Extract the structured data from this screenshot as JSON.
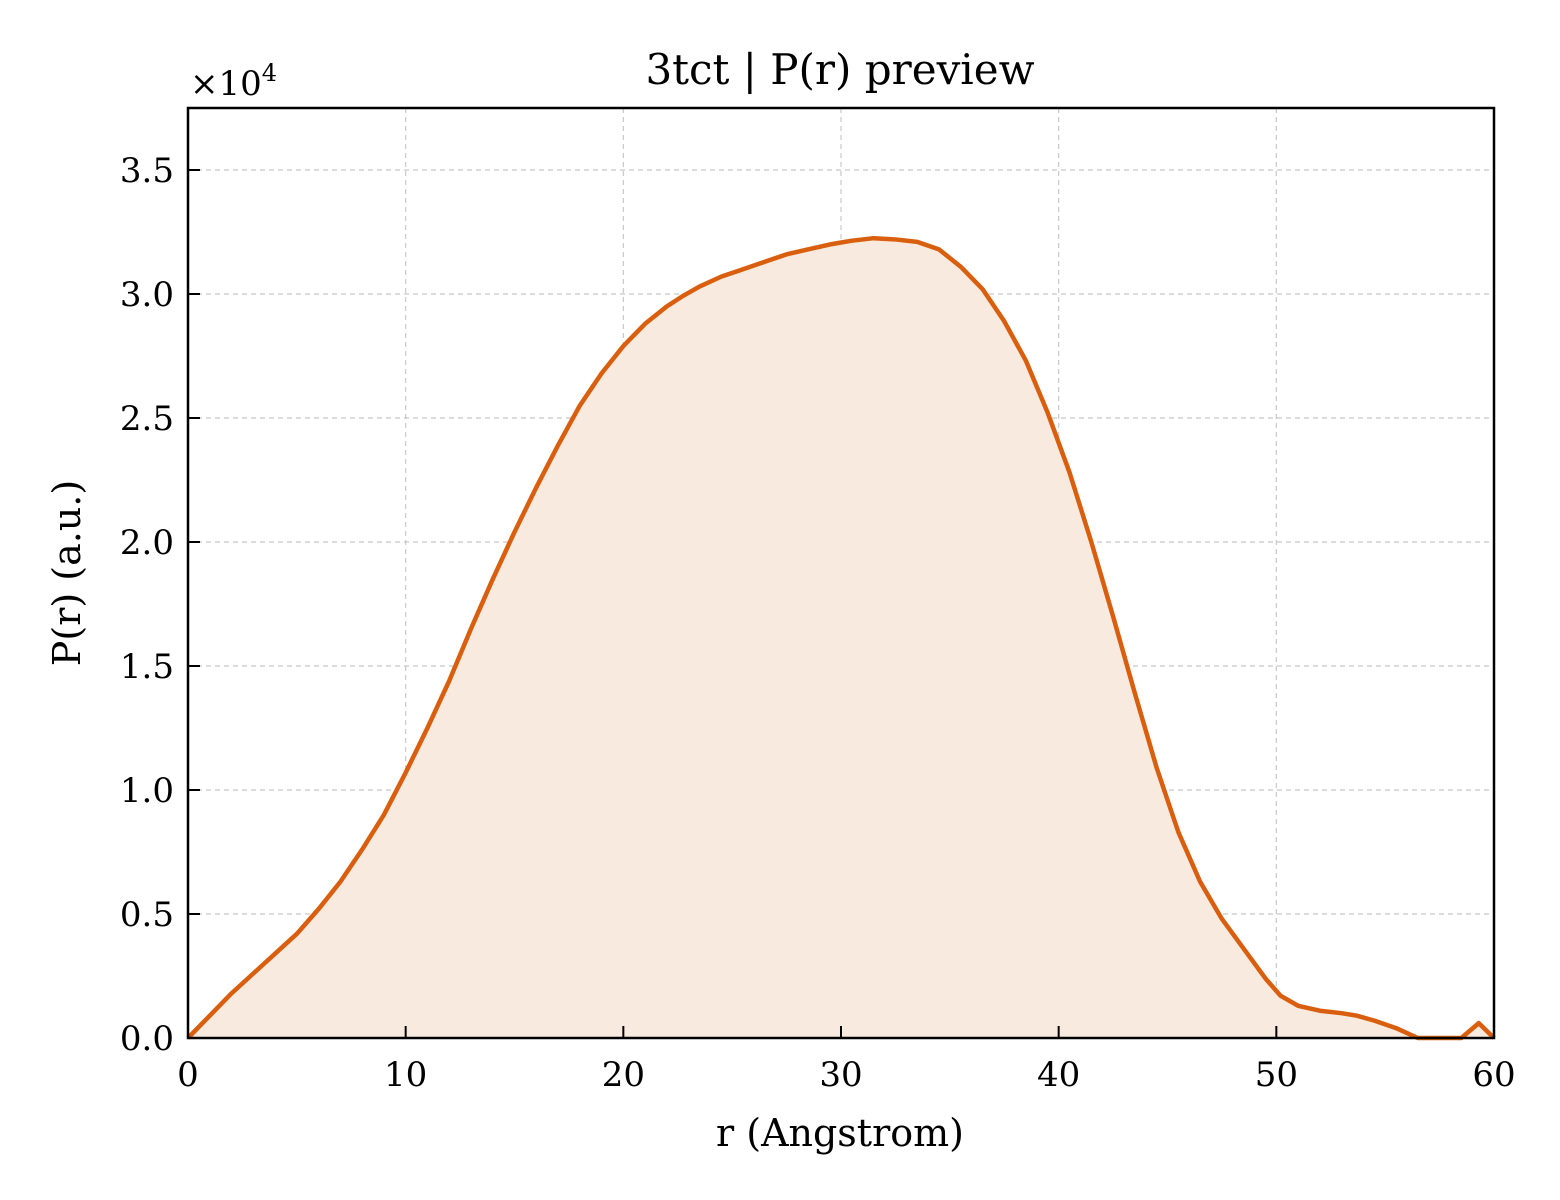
{
  "chart_data": {
    "type": "area",
    "title": "3tct | P(r) preview",
    "xlabel": "r (Angstrom)",
    "ylabel": "P(r) (a.u.)",
    "y_offset_text": "×10",
    "y_offset_exp": "4",
    "xlim": [
      0,
      60
    ],
    "ylim": [
      0,
      37500
    ],
    "xticks": [
      0,
      10,
      20,
      30,
      40,
      50,
      60
    ],
    "xtick_labels": [
      "0",
      "10",
      "20",
      "30",
      "40",
      "50",
      "60"
    ],
    "yticks": [
      0,
      5000,
      10000,
      15000,
      20000,
      25000,
      30000,
      35000
    ],
    "ytick_labels": [
      "0.0",
      "0.5",
      "1.0",
      "1.5",
      "2.0",
      "2.5",
      "3.0",
      "3.5"
    ],
    "grid": true,
    "line_color": "#D95F0E",
    "fill_color": "#F9EADF",
    "series": [
      {
        "x": [
          0,
          1,
          2,
          3,
          4,
          5,
          6,
          7,
          8,
          9,
          10,
          11,
          12,
          13,
          14,
          15,
          16,
          17,
          18,
          19,
          20,
          21,
          22,
          22.7,
          23.5,
          24.5,
          25.5,
          26.5,
          27.5,
          28.5,
          29.5,
          30.5,
          31.5,
          32.5,
          33.5,
          34.5,
          35.5,
          36.5,
          37.5,
          38.5,
          39.5,
          40.5,
          41.5,
          42.5,
          43.5,
          44.5,
          45.5,
          46.5,
          47.5,
          48.5,
          49.5,
          50.2,
          51,
          52,
          53,
          53.7,
          54.5,
          55.5,
          56.5,
          57.5,
          58.5,
          59.3,
          60
        ],
        "y": [
          0,
          900,
          1800,
          2600,
          3400,
          4200,
          5200,
          6300,
          7600,
          9000,
          10700,
          12500,
          14400,
          16500,
          18500,
          20400,
          22200,
          23900,
          25500,
          26800,
          27900,
          28800,
          29500,
          29900,
          30300,
          30700,
          31000,
          31300,
          31600,
          31800,
          32000,
          32150,
          32250,
          32200,
          32100,
          31800,
          31100,
          30200,
          28900,
          27300,
          25200,
          22800,
          20000,
          17000,
          13900,
          10900,
          8300,
          6300,
          4800,
          3600,
          2400,
          1700,
          1300,
          1100,
          1000,
          900,
          700,
          400,
          0,
          0,
          0,
          600,
          0
        ]
      }
    ]
  }
}
